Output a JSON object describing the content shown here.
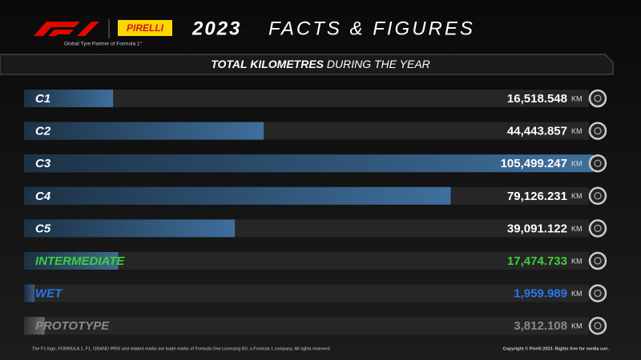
{
  "chart_data": {
    "type": "bar",
    "orientation": "horizontal",
    "brand": "F1",
    "partner": "PIRELLI",
    "tagline": "Global Tyre Partner of Formula 1°",
    "year": "2023",
    "title": "FACTS & FIGURES",
    "subtitle_bold": "TOTAL KILOMETRES",
    "subtitle": "DURING THE YEAR",
    "unit": "KM",
    "categories": [
      "C1",
      "C2",
      "C3",
      "C4",
      "C5",
      "INTERMEDIATE",
      "WET",
      "PROTOTYPE"
    ],
    "values": [
      16518.548,
      44443.857,
      105499.247,
      79126.231,
      39091.122,
      17474.733,
      1959.989,
      3812.108
    ],
    "value_labels": [
      "16,518.548",
      "44,443.857",
      "105,499.247",
      "79,126.231",
      "39,091.122",
      "17,474.733",
      "1,959.989",
      "3,812.108"
    ],
    "colors": [
      "#3f6f9c",
      "#3f6f9c",
      "#3f6f9c",
      "#3f6f9c",
      "#3f6f9c",
      "#3c6c8c",
      "#3a5f86",
      "#6a6a6a"
    ],
    "label_colors": [
      "#ffffff",
      "#ffffff",
      "#ffffff",
      "#ffffff",
      "#ffffff",
      "#3fcf3a",
      "#2a78e8",
      "#8a8a8a"
    ],
    "footer_left": "The F1 logo, FORMULA 1, F1, GRAND PRIX and related marks are trade marks of Formula One Licensing BV, a Formula 1 company. All rights reserved.",
    "footer_right": "Copyright © Pirelli 2023. Rights free for media use."
  }
}
